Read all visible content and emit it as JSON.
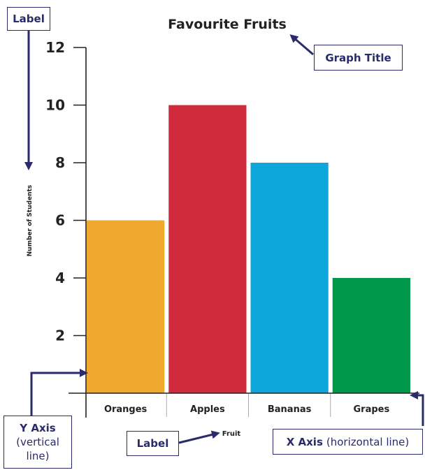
{
  "chart_data": {
    "type": "bar",
    "title": "Favourite Fruits",
    "xlabel": "Fruit",
    "ylabel": "Number of Students",
    "categories": [
      "Oranges",
      "Apples",
      "Bananas",
      "Grapes"
    ],
    "values": [
      6,
      10,
      8,
      4
    ],
    "colors": [
      "#f0a92e",
      "#cf2a3c",
      "#0ea7dc",
      "#00984a"
    ],
    "yticks": [
      2,
      4,
      6,
      8,
      10,
      12
    ],
    "ylim": [
      0,
      12
    ],
    "grid": false,
    "legend": "none"
  },
  "annotations": {
    "label_top": "Label",
    "graph_title": "Graph Title",
    "y_axis_title": "Y Axis",
    "y_axis_desc_line1": "(vertical",
    "y_axis_desc_line2": "line)",
    "label_bottom": "Label",
    "x_axis_title": "X Axis",
    "x_axis_desc": "(horizontal line)"
  },
  "colors": {
    "annotation": "#2b2a6b",
    "axis": "#222222"
  }
}
